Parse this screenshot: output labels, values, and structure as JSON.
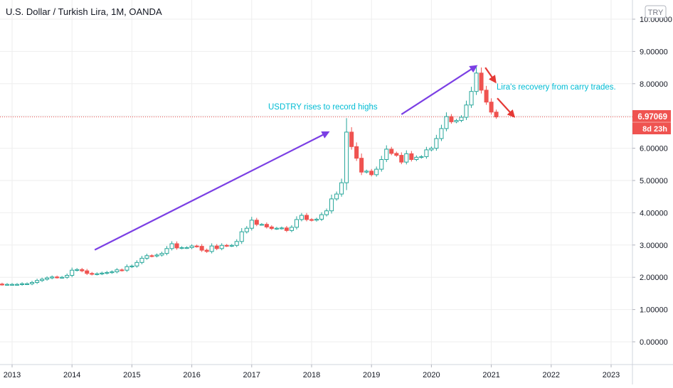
{
  "header": {
    "title": "U.S. Dollar / Turkish Lira, 1M, OANDA",
    "currency_badge": "TRY"
  },
  "price_tag": {
    "price": "6.97069",
    "countdown": "8d 23h"
  },
  "annotations": [
    {
      "name": "annotation-record-highs",
      "text": "USDTRY rises to record highs"
    },
    {
      "name": "annotation-lira-recovery",
      "text": "Lira's recovery from carry trades."
    }
  ],
  "colors": {
    "up": "#26a69a",
    "down": "#ef5350",
    "arrow_trend": "#7b3fe4",
    "arrow_recovery": "#e53935",
    "annotation_text": "#00bcd4",
    "price_line": "#ef5350",
    "grid": "#eeeeee"
  },
  "chart_data": {
    "type": "candlestick",
    "title": "U.S. Dollar / Turkish Lira, 1M, OANDA",
    "ylim": [
      -0.6,
      10.3
    ],
    "grid": true,
    "y_ticks": [
      "0.00000",
      "1.00000",
      "2.00000",
      "3.00000",
      "4.00000",
      "5.00000",
      "6.00000",
      "7.00000",
      "8.00000",
      "9.00000",
      "10.00000"
    ],
    "y_tick_values": [
      0,
      1,
      2,
      3,
      4,
      5,
      6,
      7,
      8,
      9,
      10
    ],
    "x_ticks": [
      "2013",
      "2014",
      "2015",
      "2016",
      "2017",
      "2018",
      "2019",
      "2020",
      "2021",
      "2022",
      "2023"
    ],
    "x_tick_values": [
      2013,
      2014,
      2015,
      2016,
      2017,
      2018,
      2019,
      2020,
      2021,
      2022,
      2023
    ],
    "last_price": 6.97069,
    "candles": [
      {
        "t": 2012.5,
        "c": 1.79
      },
      {
        "t": 2012.583,
        "c": 1.79
      },
      {
        "t": 2012.667,
        "c": 1.79
      },
      {
        "t": 2012.75,
        "c": 1.79
      },
      {
        "t": 2012.833,
        "c": 1.78
      },
      {
        "t": 2012.917,
        "c": 1.78
      },
      {
        "t": 2013.0,
        "c": 1.78
      },
      {
        "t": 2013.083,
        "c": 1.78
      },
      {
        "t": 2013.167,
        "c": 1.8
      },
      {
        "t": 2013.25,
        "c": 1.8
      },
      {
        "t": 2013.333,
        "c": 1.84
      },
      {
        "t": 2013.417,
        "c": 1.9
      },
      {
        "t": 2013.5,
        "c": 1.94
      },
      {
        "t": 2013.583,
        "c": 1.98
      },
      {
        "t": 2013.667,
        "c": 2.01
      },
      {
        "t": 2013.75,
        "c": 2.0
      },
      {
        "t": 2013.833,
        "c": 2.0
      },
      {
        "t": 2013.917,
        "c": 2.06
      },
      {
        "t": 2014.0,
        "c": 2.22
      },
      {
        "t": 2014.083,
        "c": 2.24
      },
      {
        "t": 2014.167,
        "c": 2.2
      },
      {
        "t": 2014.25,
        "c": 2.12
      },
      {
        "t": 2014.333,
        "c": 2.1
      },
      {
        "t": 2014.417,
        "c": 2.11
      },
      {
        "t": 2014.5,
        "c": 2.13
      },
      {
        "t": 2014.583,
        "c": 2.15
      },
      {
        "t": 2014.667,
        "c": 2.17
      },
      {
        "t": 2014.75,
        "c": 2.23
      },
      {
        "t": 2014.833,
        "c": 2.22
      },
      {
        "t": 2014.917,
        "c": 2.33
      },
      {
        "t": 2015.0,
        "c": 2.35
      },
      {
        "t": 2015.083,
        "c": 2.46
      },
      {
        "t": 2015.167,
        "c": 2.59
      },
      {
        "t": 2015.25,
        "c": 2.67
      },
      {
        "t": 2015.333,
        "c": 2.66
      },
      {
        "t": 2015.417,
        "c": 2.69
      },
      {
        "t": 2015.5,
        "c": 2.74
      },
      {
        "t": 2015.583,
        "c": 2.89
      },
      {
        "t": 2015.667,
        "c": 3.04
      },
      {
        "t": 2015.75,
        "c": 2.91
      },
      {
        "t": 2015.833,
        "c": 2.92
      },
      {
        "t": 2015.917,
        "c": 2.92
      },
      {
        "t": 2016.0,
        "c": 2.97
      },
      {
        "t": 2016.083,
        "c": 2.96
      },
      {
        "t": 2016.167,
        "c": 2.84
      },
      {
        "t": 2016.25,
        "c": 2.8
      },
      {
        "t": 2016.333,
        "c": 2.97
      },
      {
        "t": 2016.417,
        "c": 2.89
      },
      {
        "t": 2016.5,
        "c": 2.99
      },
      {
        "t": 2016.583,
        "c": 2.98
      },
      {
        "t": 2016.667,
        "c": 2.99
      },
      {
        "t": 2016.75,
        "c": 3.11
      },
      {
        "t": 2016.833,
        "c": 3.41
      },
      {
        "t": 2016.917,
        "c": 3.52
      },
      {
        "t": 2017.0,
        "c": 3.77
      },
      {
        "t": 2017.083,
        "c": 3.64
      },
      {
        "t": 2017.167,
        "c": 3.64
      },
      {
        "t": 2017.25,
        "c": 3.56
      },
      {
        "t": 2017.333,
        "c": 3.51
      },
      {
        "t": 2017.417,
        "c": 3.52
      },
      {
        "t": 2017.5,
        "c": 3.53
      },
      {
        "t": 2017.583,
        "c": 3.45
      },
      {
        "t": 2017.667,
        "c": 3.55
      },
      {
        "t": 2017.75,
        "c": 3.79
      },
      {
        "t": 2017.833,
        "c": 3.92
      },
      {
        "t": 2017.917,
        "c": 3.79
      },
      {
        "t": 2018.0,
        "c": 3.77
      },
      {
        "t": 2018.083,
        "c": 3.8
      },
      {
        "t": 2018.167,
        "c": 3.94
      },
      {
        "t": 2018.25,
        "c": 4.06
      },
      {
        "t": 2018.333,
        "c": 4.43
      },
      {
        "t": 2018.417,
        "c": 4.58
      },
      {
        "t": 2018.5,
        "c": 4.93
      },
      {
        "t": 2018.583,
        "c": 6.5
      },
      {
        "t": 2018.667,
        "c": 6.05
      },
      {
        "t": 2018.75,
        "c": 5.69
      },
      {
        "t": 2018.833,
        "c": 5.26
      },
      {
        "t": 2018.917,
        "c": 5.29
      },
      {
        "t": 2019.0,
        "c": 5.18
      },
      {
        "t": 2019.083,
        "c": 5.35
      },
      {
        "t": 2019.167,
        "c": 5.65
      },
      {
        "t": 2019.25,
        "c": 5.97
      },
      {
        "t": 2019.333,
        "c": 5.84
      },
      {
        "t": 2019.417,
        "c": 5.78
      },
      {
        "t": 2019.5,
        "c": 5.57
      },
      {
        "t": 2019.583,
        "c": 5.83
      },
      {
        "t": 2019.667,
        "c": 5.65
      },
      {
        "t": 2019.75,
        "c": 5.72
      },
      {
        "t": 2019.833,
        "c": 5.74
      },
      {
        "t": 2019.917,
        "c": 5.95
      },
      {
        "t": 2020.0,
        "c": 6.0
      },
      {
        "t": 2020.083,
        "c": 6.3
      },
      {
        "t": 2020.167,
        "c": 6.61
      },
      {
        "t": 2020.25,
        "c": 6.98
      },
      {
        "t": 2020.333,
        "c": 6.82
      },
      {
        "t": 2020.417,
        "c": 6.86
      },
      {
        "t": 2020.5,
        "c": 6.96
      },
      {
        "t": 2020.583,
        "c": 7.34
      },
      {
        "t": 2020.667,
        "c": 7.76
      },
      {
        "t": 2020.75,
        "c": 8.33
      },
      {
        "t": 2020.833,
        "c": 7.8
      },
      {
        "t": 2020.917,
        "c": 7.43
      },
      {
        "t": 2021.0,
        "c": 7.12
      },
      {
        "t": 2021.083,
        "c": 6.97
      }
    ]
  }
}
